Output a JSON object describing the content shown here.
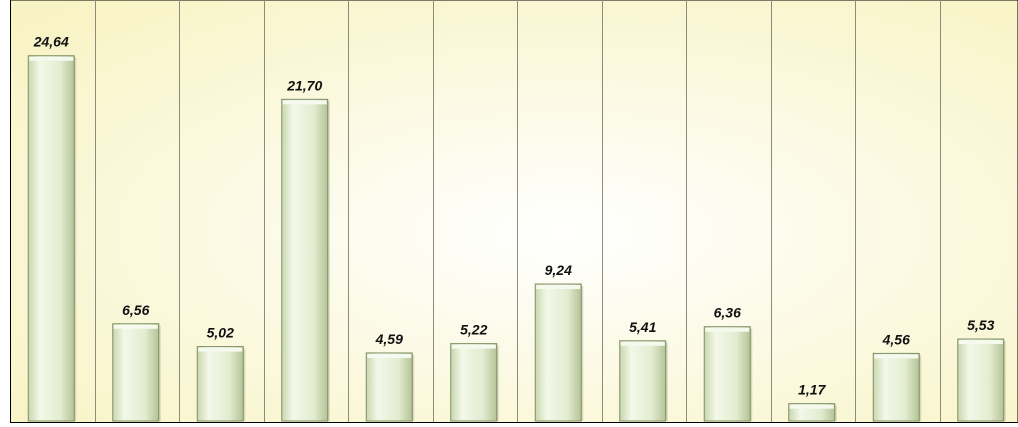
{
  "chart_data": {
    "type": "bar",
    "categories": [
      "",
      "",
      "",
      "",
      "",
      "",
      "",
      "",
      "",
      "",
      "",
      ""
    ],
    "values": [
      24.64,
      6.56,
      5.02,
      21.7,
      4.59,
      5.22,
      9.24,
      5.41,
      6.36,
      1.17,
      4.56,
      5.53
    ],
    "data_labels": [
      "24,64",
      "6,56",
      "5,02",
      "21,70",
      "4,59",
      "5,22",
      "9,24",
      "5,41",
      "6,36",
      "1,17",
      "4,56",
      "5,53"
    ],
    "title": "",
    "xlabel": "",
    "ylabel": "",
    "ylim": [
      0,
      28.4
    ],
    "grid": "vertical separators between categories",
    "legend": "none",
    "colors": {
      "bar_face": "#e6efd2",
      "bar_light": "#f6faee",
      "bar_shade": "#a9b98a",
      "bar_outline": "#7f8f64",
      "plot_background_center": "#ffffff",
      "plot_background_edge": "#f8f3c2",
      "separator": "#8c8c7a",
      "axis": "#000000"
    }
  }
}
